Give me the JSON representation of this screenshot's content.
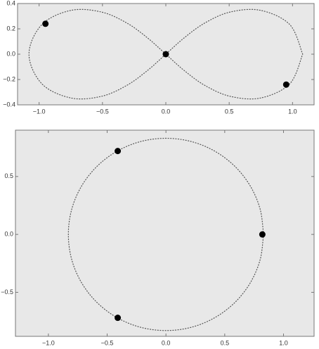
{
  "chart_data": [
    {
      "type": "line",
      "xlim": [
        -1.17,
        1.17
      ],
      "ylim": [
        -0.4,
        0.4
      ],
      "xticks": [
        {
          "value": -1,
          "label": "−1.0"
        },
        {
          "value": -0.5,
          "label": "−0.5"
        },
        {
          "value": 0,
          "label": "0.0"
        },
        {
          "value": 0.5,
          "label": "0.5"
        },
        {
          "value": 1,
          "label": "1.0"
        }
      ],
      "yticks": [
        {
          "value": -0.4,
          "label": "−0.4"
        },
        {
          "value": -0.2,
          "label": "−0.2"
        },
        {
          "value": 0,
          "label": "0.0"
        },
        {
          "value": 0.2,
          "label": "0.2"
        },
        {
          "value": 0.4,
          "label": "0.4"
        }
      ],
      "series": [
        {
          "style": "dotted",
          "color": "#555555",
          "x": [
            1.08,
            0.978,
            0.748,
            0.509,
            0.309,
            0.145,
            0,
            -0.145,
            -0.309,
            -0.509,
            -0.748,
            -0.978,
            -1.08,
            -0.978,
            -0.748,
            -0.509,
            -0.309,
            -0.145,
            0,
            0.145,
            0.309,
            0.509,
            0.748,
            0.978,
            1.08
          ],
          "y": [
            0,
            0.234,
            0.346,
            0.333,
            0.247,
            0.129,
            0,
            -0.129,
            -0.247,
            -0.333,
            -0.346,
            -0.234,
            0,
            0.234,
            0.346,
            0.333,
            0.247,
            0.129,
            0,
            -0.129,
            -0.247,
            -0.333,
            -0.346,
            -0.234,
            0
          ]
        },
        {
          "style": "points",
          "color": "#000000",
          "x": [
            -0.95,
            0,
            0.95
          ],
          "y": [
            0.24,
            0,
            -0.24
          ]
        }
      ]
    },
    {
      "type": "line",
      "xlim": [
        -1.28,
        1.26
      ],
      "ylim": [
        -0.88,
        0.9
      ],
      "xticks": [
        {
          "value": -1,
          "label": "−1.0"
        },
        {
          "value": -0.5,
          "label": "−0.5"
        },
        {
          "value": 0,
          "label": "0.0"
        },
        {
          "value": 0.5,
          "label": "0.5"
        },
        {
          "value": 1,
          "label": "1.0"
        }
      ],
      "yticks": [
        {
          "value": -0.5,
          "label": "−0.5"
        },
        {
          "value": 0,
          "label": "0.0"
        },
        {
          "value": 0.5,
          "label": "0.5"
        }
      ],
      "series": [
        {
          "style": "dotted",
          "color": "#555555",
          "x": [
            0.83,
            0.802,
            0.719,
            0.587,
            0.415,
            0.215,
            0,
            -0.215,
            -0.415,
            -0.587,
            -0.719,
            -0.802,
            -0.83,
            -0.802,
            -0.719,
            -0.587,
            -0.415,
            -0.215,
            0,
            0.215,
            0.415,
            0.587,
            0.719,
            0.802,
            0.83
          ],
          "y": [
            0,
            0.215,
            0.415,
            0.587,
            0.719,
            0.802,
            0.83,
            0.802,
            0.719,
            0.587,
            0.415,
            0.215,
            0,
            -0.215,
            -0.415,
            -0.587,
            -0.719,
            -0.802,
            -0.83,
            -0.802,
            -0.719,
            -0.587,
            -0.415,
            -0.215,
            0
          ]
        },
        {
          "style": "points",
          "color": "#000000",
          "x": [
            -0.41,
            0.82,
            -0.41
          ],
          "y": [
            0.72,
            0,
            -0.72
          ]
        }
      ]
    }
  ]
}
